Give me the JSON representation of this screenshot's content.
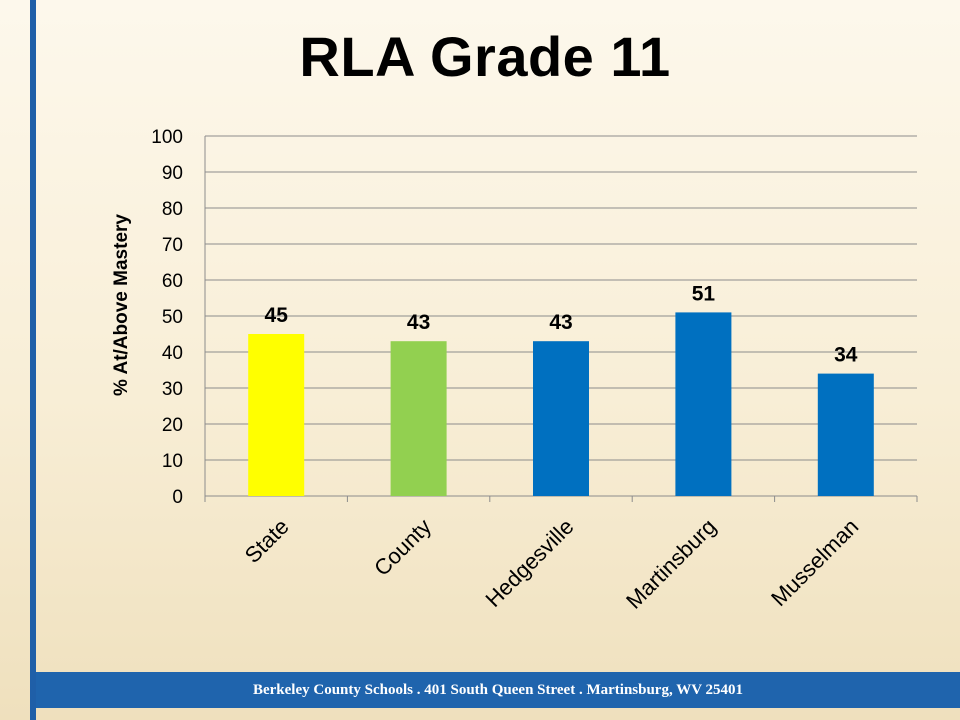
{
  "slide": {
    "title": "RLA Grade 11",
    "footer": "Berkeley County Schools . 401 South Queen Street . Martinsburg, WV  25401"
  },
  "colors": {
    "state": "#ffff00",
    "county": "#92d050",
    "school": "#0070c0",
    "accent": "#1f64ad"
  },
  "chart_data": {
    "type": "bar",
    "title": "RLA Grade 11",
    "xlabel": "",
    "ylabel": "% At/Above Mastery",
    "categories": [
      "State",
      "County",
      "Hedgesville",
      "Martinsburg",
      "Musselman"
    ],
    "values": [
      45,
      43,
      43,
      51,
      34
    ],
    "bar_colors": [
      "#ffff00",
      "#92d050",
      "#0070c0",
      "#0070c0",
      "#0070c0"
    ],
    "ylim": [
      0,
      100
    ],
    "yticks": [
      0,
      10,
      20,
      30,
      40,
      50,
      60,
      70,
      80,
      90,
      100
    ],
    "grid": true,
    "data_labels": true,
    "legend": "none"
  }
}
